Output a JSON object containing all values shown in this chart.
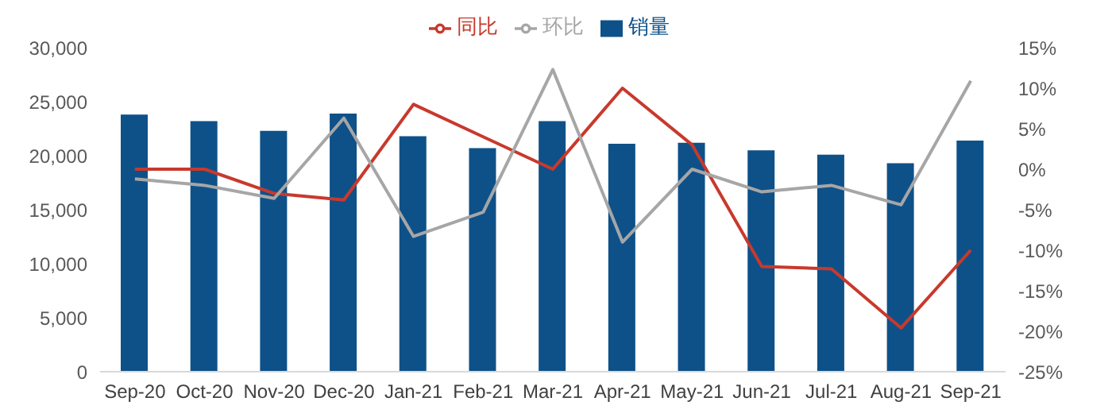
{
  "chart_data": {
    "type": "bar",
    "categories": [
      "Sep-20",
      "Oct-20",
      "Nov-20",
      "Dec-20",
      "Jan-21",
      "Feb-21",
      "Mar-21",
      "Apr-21",
      "May-21",
      "Jun-21",
      "Jul-21",
      "Aug-21",
      "Sep-21"
    ],
    "series": [
      {
        "name": "销量",
        "color": "#0e5189",
        "values": [
          23800,
          23200,
          22300,
          23900,
          21800,
          20700,
          23200,
          21100,
          21200,
          20500,
          20100,
          19300,
          21400
        ]
      },
      {
        "name": "同比",
        "type": "line",
        "axis": "y2",
        "color": "#c8392d",
        "values": [
          0,
          0,
          -3,
          -3.8,
          8,
          4,
          0,
          10,
          3,
          -12,
          -12.3,
          -19.6,
          -10
        ]
      },
      {
        "name": "环比",
        "type": "line",
        "axis": "y2",
        "color": "#a6a6a6",
        "values": [
          -1.2,
          -2,
          -3.6,
          6.3,
          -8.3,
          -5.3,
          12.3,
          -9,
          0,
          -2.8,
          -2,
          -4.4,
          10.9
        ]
      }
    ],
    "ylim": [
      0,
      30000
    ],
    "yticks": [
      {
        "value": 0,
        "label": "0"
      },
      {
        "value": 5000,
        "label": "5,000"
      },
      {
        "value": 10000,
        "label": "10,000"
      },
      {
        "value": 15000,
        "label": "15,000"
      },
      {
        "value": 20000,
        "label": "20,000"
      },
      {
        "value": 25000,
        "label": "25,000"
      },
      {
        "value": 30000,
        "label": "30,000"
      }
    ],
    "y2lim": [
      -25,
      15
    ],
    "y2ticks": [
      {
        "value": -25,
        "label": "-25%"
      },
      {
        "value": -20,
        "label": "-20%"
      },
      {
        "value": -15,
        "label": "-15%"
      },
      {
        "value": -10,
        "label": "-10%"
      },
      {
        "value": -5,
        "label": "-5%"
      },
      {
        "value": 0,
        "label": "0%"
      },
      {
        "value": 5,
        "label": "5%"
      },
      {
        "value": 10,
        "label": "10%"
      },
      {
        "value": 15,
        "label": "15%"
      }
    ],
    "legend": "top",
    "grid": false,
    "marker": "none"
  }
}
